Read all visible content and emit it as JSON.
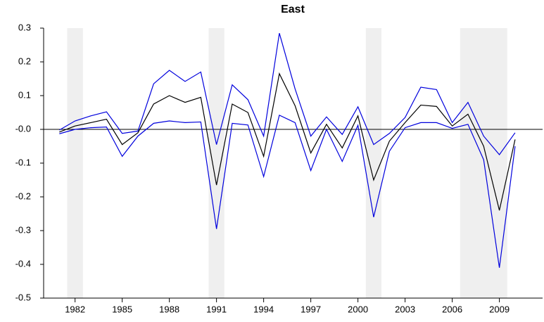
{
  "chart_data": {
    "type": "line",
    "title": "East",
    "x": [
      1981,
      1982,
      1983,
      1984,
      1985,
      1986,
      1987,
      1988,
      1989,
      1990,
      1991,
      1992,
      1993,
      1994,
      1995,
      1996,
      1997,
      1998,
      1999,
      2000,
      2001,
      2002,
      2003,
      2004,
      2005,
      2006,
      2007,
      2008,
      2009,
      2010
    ],
    "series": [
      {
        "color": "#0000dd",
        "values": [
          -0.002,
          0.025,
          0.04,
          0.052,
          -0.012,
          -0.005,
          0.135,
          0.175,
          0.142,
          0.17,
          -0.045,
          0.132,
          0.088,
          -0.02,
          0.285,
          0.12,
          -0.02,
          0.037,
          -0.015,
          0.067,
          -0.045,
          -0.012,
          0.035,
          0.125,
          0.118,
          0.02,
          0.08,
          -0.02,
          -0.075,
          -0.01
        ]
      },
      {
        "color": "#0000dd",
        "values": [
          -0.013,
          0.0,
          0.005,
          0.007,
          -0.08,
          -0.02,
          0.018,
          0.025,
          0.02,
          0.022,
          -0.295,
          0.018,
          0.013,
          -0.14,
          0.042,
          0.02,
          -0.122,
          0.0,
          -0.095,
          0.012,
          -0.26,
          -0.065,
          0.005,
          0.02,
          0.02,
          0.003,
          0.015,
          -0.09,
          -0.41,
          -0.05
        ]
      },
      {
        "color": "#000000",
        "values": [
          -0.008,
          0.01,
          0.02,
          0.03,
          -0.045,
          -0.01,
          0.075,
          0.1,
          0.08,
          0.095,
          -0.165,
          0.075,
          0.05,
          -0.08,
          0.165,
          0.07,
          -0.07,
          0.015,
          -0.055,
          0.04,
          -0.15,
          -0.035,
          0.02,
          0.072,
          0.068,
          0.01,
          0.045,
          -0.05,
          -0.24,
          -0.03
        ]
      }
    ],
    "shaded_regions": [
      [
        1981.5,
        1982.5
      ],
      [
        1990.5,
        1991.5
      ],
      [
        2000.5,
        2001.5
      ],
      [
        2006.5,
        2009.5
      ]
    ],
    "shade_color": "#efefef",
    "hlines": [
      0
    ],
    "xlim": [
      1980,
      2011.75
    ],
    "xticks": [
      1982,
      1985,
      1988,
      1991,
      1994,
      1997,
      2000,
      2003,
      2006,
      2009
    ],
    "ylim": [
      -0.5,
      0.3
    ],
    "yticks": [
      0.3,
      0.2,
      0.1,
      {
        "value": 0,
        "label": "-0.0"
      },
      -0.1,
      -0.2,
      -0.3,
      -0.4,
      -0.5
    ]
  }
}
